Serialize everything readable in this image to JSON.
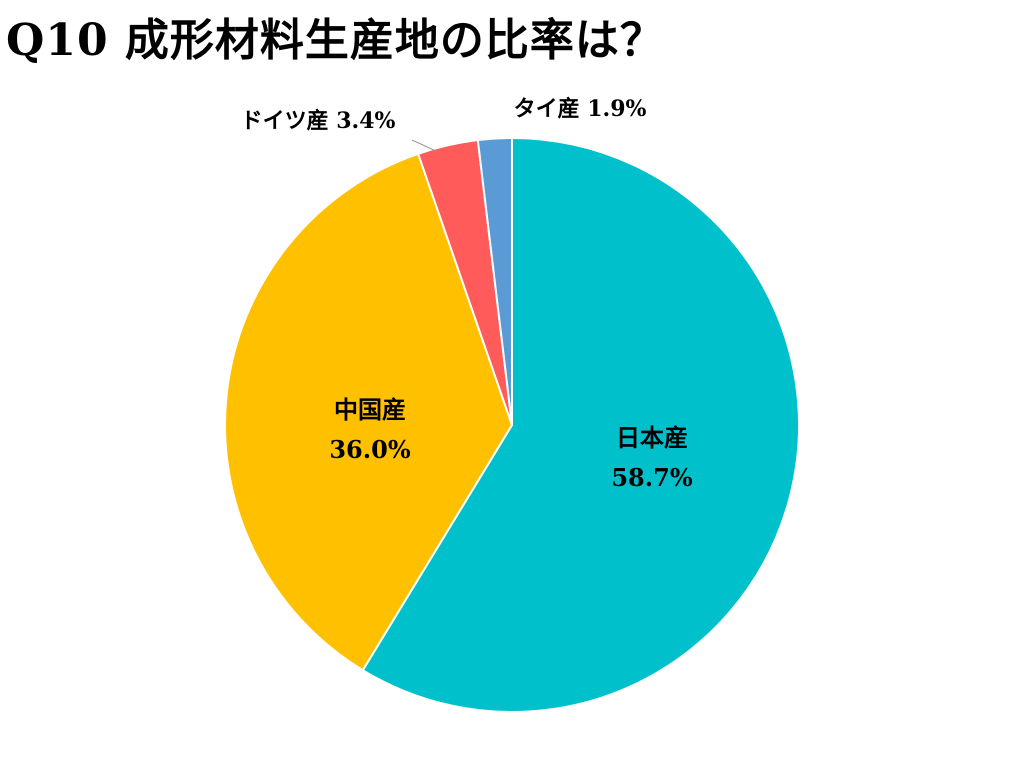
{
  "title": "Q10 成形材料生産地の比率は？",
  "chart_data": {
    "type": "pie",
    "title": "Q10 成形材料生産地の比率は？",
    "start_angle_deg": 0,
    "direction": "clockwise",
    "slices": [
      {
        "name": "日本産",
        "value": 58.7,
        "label": "58.7%",
        "color": "#00C0CC",
        "label_position": "inside"
      },
      {
        "name": "中国産",
        "value": 36.0,
        "label": "36.0%",
        "color": "#FFC000",
        "label_position": "inside"
      },
      {
        "name": "ドイツ産",
        "value": 3.4,
        "label": "3.4%",
        "color": "#FF5B5B",
        "label_position": "outside",
        "leader_line": true
      },
      {
        "name": "タイ産",
        "value": 1.9,
        "label": "1.9%",
        "color": "#5B9BD5",
        "label_position": "outside"
      }
    ]
  }
}
